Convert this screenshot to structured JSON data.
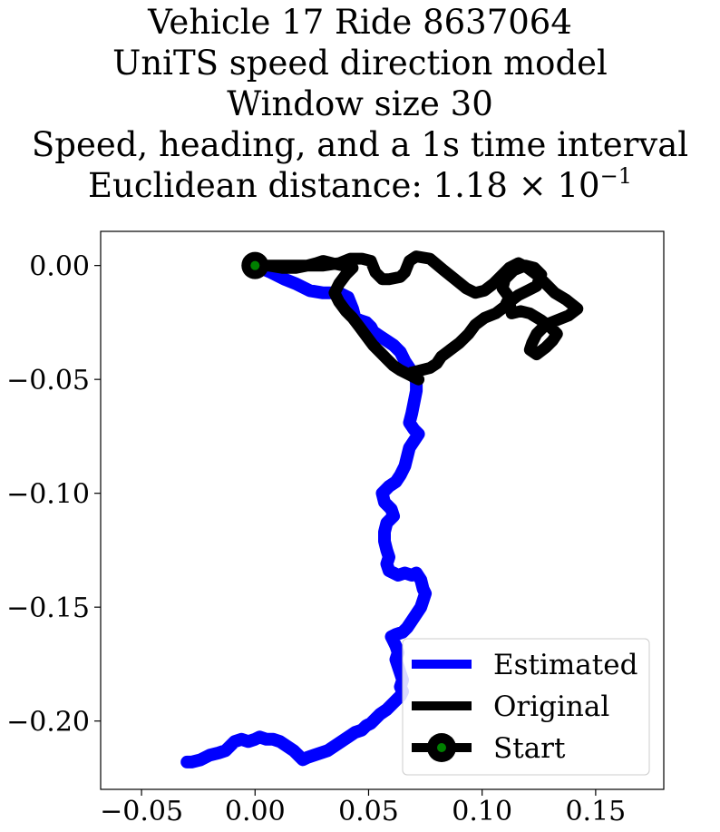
{
  "chart_data": {
    "type": "line",
    "title_lines": [
      "Vehicle 17 Ride 8637064",
      "UniTS speed direction model",
      "Window size 30",
      "Speed, heading, and a 1s time interval"
    ],
    "distance_prefix": "Euclidean distance: ",
    "distance_mantissa": "1.18",
    "distance_times": "×",
    "distance_base": "10",
    "distance_exponent": "−1",
    "xlim": [
      -0.068,
      0.18
    ],
    "ylim": [
      -0.23,
      0.015
    ],
    "xticks": [
      -0.05,
      0.0,
      0.05,
      0.1,
      0.15
    ],
    "xtick_labels": [
      "−0.05",
      "0.00",
      "0.05",
      "0.10",
      "0.15"
    ],
    "yticks": [
      0.0,
      -0.05,
      -0.1,
      -0.15,
      -0.2
    ],
    "ytick_labels": [
      "0.00",
      "−0.05",
      "−0.10",
      "−0.15",
      "−0.20"
    ],
    "grid": false,
    "legend_position": "lower right",
    "colors": {
      "estimated": "#0000ff",
      "original": "#000000",
      "start_marker": "#008000"
    },
    "series": [
      {
        "name": "Estimated",
        "x": [
          0.0,
          0.007,
          0.013,
          0.018,
          0.024,
          0.03,
          0.037,
          0.041,
          0.043,
          0.044,
          0.046,
          0.049,
          0.051,
          0.052,
          0.055,
          0.058,
          0.061,
          0.064,
          0.066,
          0.068,
          0.07,
          0.071,
          0.071,
          0.07,
          0.069,
          0.068,
          0.07,
          0.072,
          0.07,
          0.068,
          0.067,
          0.066,
          0.064,
          0.062,
          0.059,
          0.056,
          0.057,
          0.06,
          0.061,
          0.058,
          0.057,
          0.057,
          0.058,
          0.059,
          0.058,
          0.059,
          0.061,
          0.063,
          0.066,
          0.069,
          0.071,
          0.073,
          0.074,
          0.075,
          0.074,
          0.073,
          0.071,
          0.069,
          0.067,
          0.065,
          0.062,
          0.06,
          0.061,
          0.062,
          0.063,
          0.062,
          0.063,
          0.064,
          0.065,
          0.064,
          0.065,
          0.064,
          0.062,
          0.06,
          0.058,
          0.055,
          0.053,
          0.051,
          0.049,
          0.047,
          0.044,
          0.041,
          0.038,
          0.035,
          0.032,
          0.029,
          0.026,
          0.023,
          0.021,
          0.019,
          0.017,
          0.014,
          0.011,
          0.008,
          0.005,
          0.002,
          0.0,
          -0.003,
          -0.006,
          -0.009,
          -0.011,
          -0.013,
          -0.016,
          -0.02,
          -0.024,
          -0.028,
          -0.03
        ],
        "y": [
          0.0,
          -0.003,
          -0.006,
          -0.008,
          -0.011,
          -0.012,
          -0.012,
          -0.014,
          -0.019,
          -0.023,
          -0.024,
          -0.025,
          -0.027,
          -0.029,
          -0.031,
          -0.033,
          -0.035,
          -0.038,
          -0.042,
          -0.045,
          -0.048,
          -0.051,
          -0.055,
          -0.06,
          -0.065,
          -0.069,
          -0.072,
          -0.074,
          -0.077,
          -0.08,
          -0.084,
          -0.088,
          -0.092,
          -0.095,
          -0.097,
          -0.1,
          -0.104,
          -0.107,
          -0.11,
          -0.113,
          -0.117,
          -0.121,
          -0.125,
          -0.128,
          -0.131,
          -0.134,
          -0.135,
          -0.136,
          -0.135,
          -0.136,
          -0.135,
          -0.138,
          -0.142,
          -0.144,
          -0.147,
          -0.15,
          -0.153,
          -0.156,
          -0.159,
          -0.161,
          -0.162,
          -0.163,
          -0.165,
          -0.167,
          -0.17,
          -0.173,
          -0.176,
          -0.179,
          -0.182,
          -0.185,
          -0.187,
          -0.189,
          -0.191,
          -0.193,
          -0.195,
          -0.197,
          -0.199,
          -0.201,
          -0.202,
          -0.204,
          -0.205,
          -0.207,
          -0.209,
          -0.211,
          -0.213,
          -0.214,
          -0.215,
          -0.216,
          -0.217,
          -0.215,
          -0.213,
          -0.211,
          -0.209,
          -0.208,
          -0.208,
          -0.207,
          -0.208,
          -0.209,
          -0.208,
          -0.209,
          -0.211,
          -0.213,
          -0.214,
          -0.215,
          -0.217,
          -0.218,
          -0.218
        ]
      },
      {
        "name": "Original",
        "x": [
          0.0,
          0.01,
          0.02,
          0.03,
          0.037,
          0.042,
          0.047,
          0.051,
          0.053,
          0.056,
          0.059,
          0.064,
          0.066,
          0.068,
          0.071,
          0.077,
          0.083,
          0.088,
          0.093,
          0.097,
          0.101,
          0.105,
          0.108,
          0.112,
          0.116,
          0.12,
          0.124,
          0.128,
          0.132,
          0.137,
          0.142,
          0.138,
          0.133,
          0.128,
          0.124,
          0.122,
          0.121,
          0.124,
          0.128,
          0.131,
          0.133,
          0.13,
          0.126,
          0.121,
          0.117,
          0.113,
          0.112,
          0.116,
          0.12,
          0.124,
          0.126,
          0.123,
          0.119,
          0.114,
          0.11,
          0.109,
          0.112,
          0.11,
          0.106,
          0.101,
          0.097,
          0.094,
          0.09,
          0.086,
          0.082,
          0.08,
          0.077,
          0.073,
          0.069,
          0.072,
          0.068,
          0.064,
          0.061,
          0.058,
          0.055,
          0.052,
          0.049,
          0.046,
          0.043,
          0.04,
          0.037,
          0.035,
          0.037,
          0.04,
          0.043,
          0.039,
          0.034,
          0.03,
          0.027,
          0.023,
          0.018,
          0.012,
          0.006,
          0.0
        ],
        "y": [
          0.0,
          0.0,
          0.0,
          0.0,
          0.001,
          0.003,
          0.003,
          0.002,
          -0.003,
          -0.006,
          -0.006,
          -0.005,
          -0.003,
          0.002,
          0.004,
          0.003,
          -0.002,
          -0.006,
          -0.01,
          -0.012,
          -0.011,
          -0.008,
          -0.005,
          -0.001,
          0.001,
          -0.001,
          -0.004,
          -0.008,
          -0.012,
          -0.015,
          -0.019,
          -0.022,
          -0.024,
          -0.026,
          -0.03,
          -0.034,
          -0.037,
          -0.039,
          -0.036,
          -0.033,
          -0.03,
          -0.027,
          -0.024,
          -0.021,
          -0.02,
          -0.021,
          -0.016,
          -0.013,
          -0.011,
          -0.009,
          -0.004,
          -0.001,
          0.0,
          -0.002,
          -0.006,
          -0.01,
          -0.014,
          -0.018,
          -0.021,
          -0.023,
          -0.026,
          -0.03,
          -0.034,
          -0.037,
          -0.04,
          -0.043,
          -0.045,
          -0.046,
          -0.047,
          -0.05,
          -0.048,
          -0.046,
          -0.044,
          -0.041,
          -0.038,
          -0.035,
          -0.031,
          -0.027,
          -0.023,
          -0.02,
          -0.016,
          -0.012,
          -0.008,
          -0.004,
          -0.001,
          0.0,
          0.001,
          0.002,
          0.001,
          0.0,
          -0.001,
          -0.001,
          0.0,
          0.0
        ]
      }
    ],
    "start_point": {
      "x": 0.0,
      "y": 0.0
    },
    "legend": [
      {
        "label": "Estimated",
        "kind": "line",
        "color": "#0000ff"
      },
      {
        "label": "Original",
        "kind": "line",
        "color": "#000000"
      },
      {
        "label": "Start",
        "kind": "line-marker",
        "color": "#000000",
        "marker_color": "#008000"
      }
    ]
  }
}
